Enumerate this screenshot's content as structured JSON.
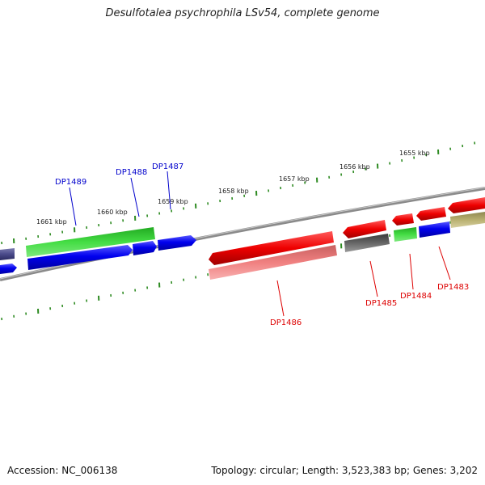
{
  "title": "Desulfotalea psychrophila LSv54, complete genome",
  "footer": {
    "accession": "Accession: NC_006138",
    "summary": "Topology: circular; Length: 3,523,383 bp; Genes: 3,202"
  },
  "scale_labels": [
    "1661 kbp",
    "1660 kbp",
    "1659 kbp",
    "1658 kbp",
    "1657 kbp",
    "1656 kbp",
    "1655 kbp"
  ],
  "gene_labels": {
    "top": [
      "DP1489",
      "DP1488",
      "DP1487"
    ],
    "bottom": [
      "DP1486",
      "DP1485",
      "DP1484",
      "DP1483"
    ]
  },
  "colors": {
    "forward_label": "#0000cc",
    "reverse_label": "#dd0000",
    "tick": "#2e8b22",
    "backbone": "#888888",
    "blue": "#0000ee",
    "green": "#33cc33",
    "red": "#ee0000",
    "pink": "#f08080",
    "grey": "#5a5a5a",
    "olive": "#b8b070",
    "purple": "#4a4a8a"
  }
}
